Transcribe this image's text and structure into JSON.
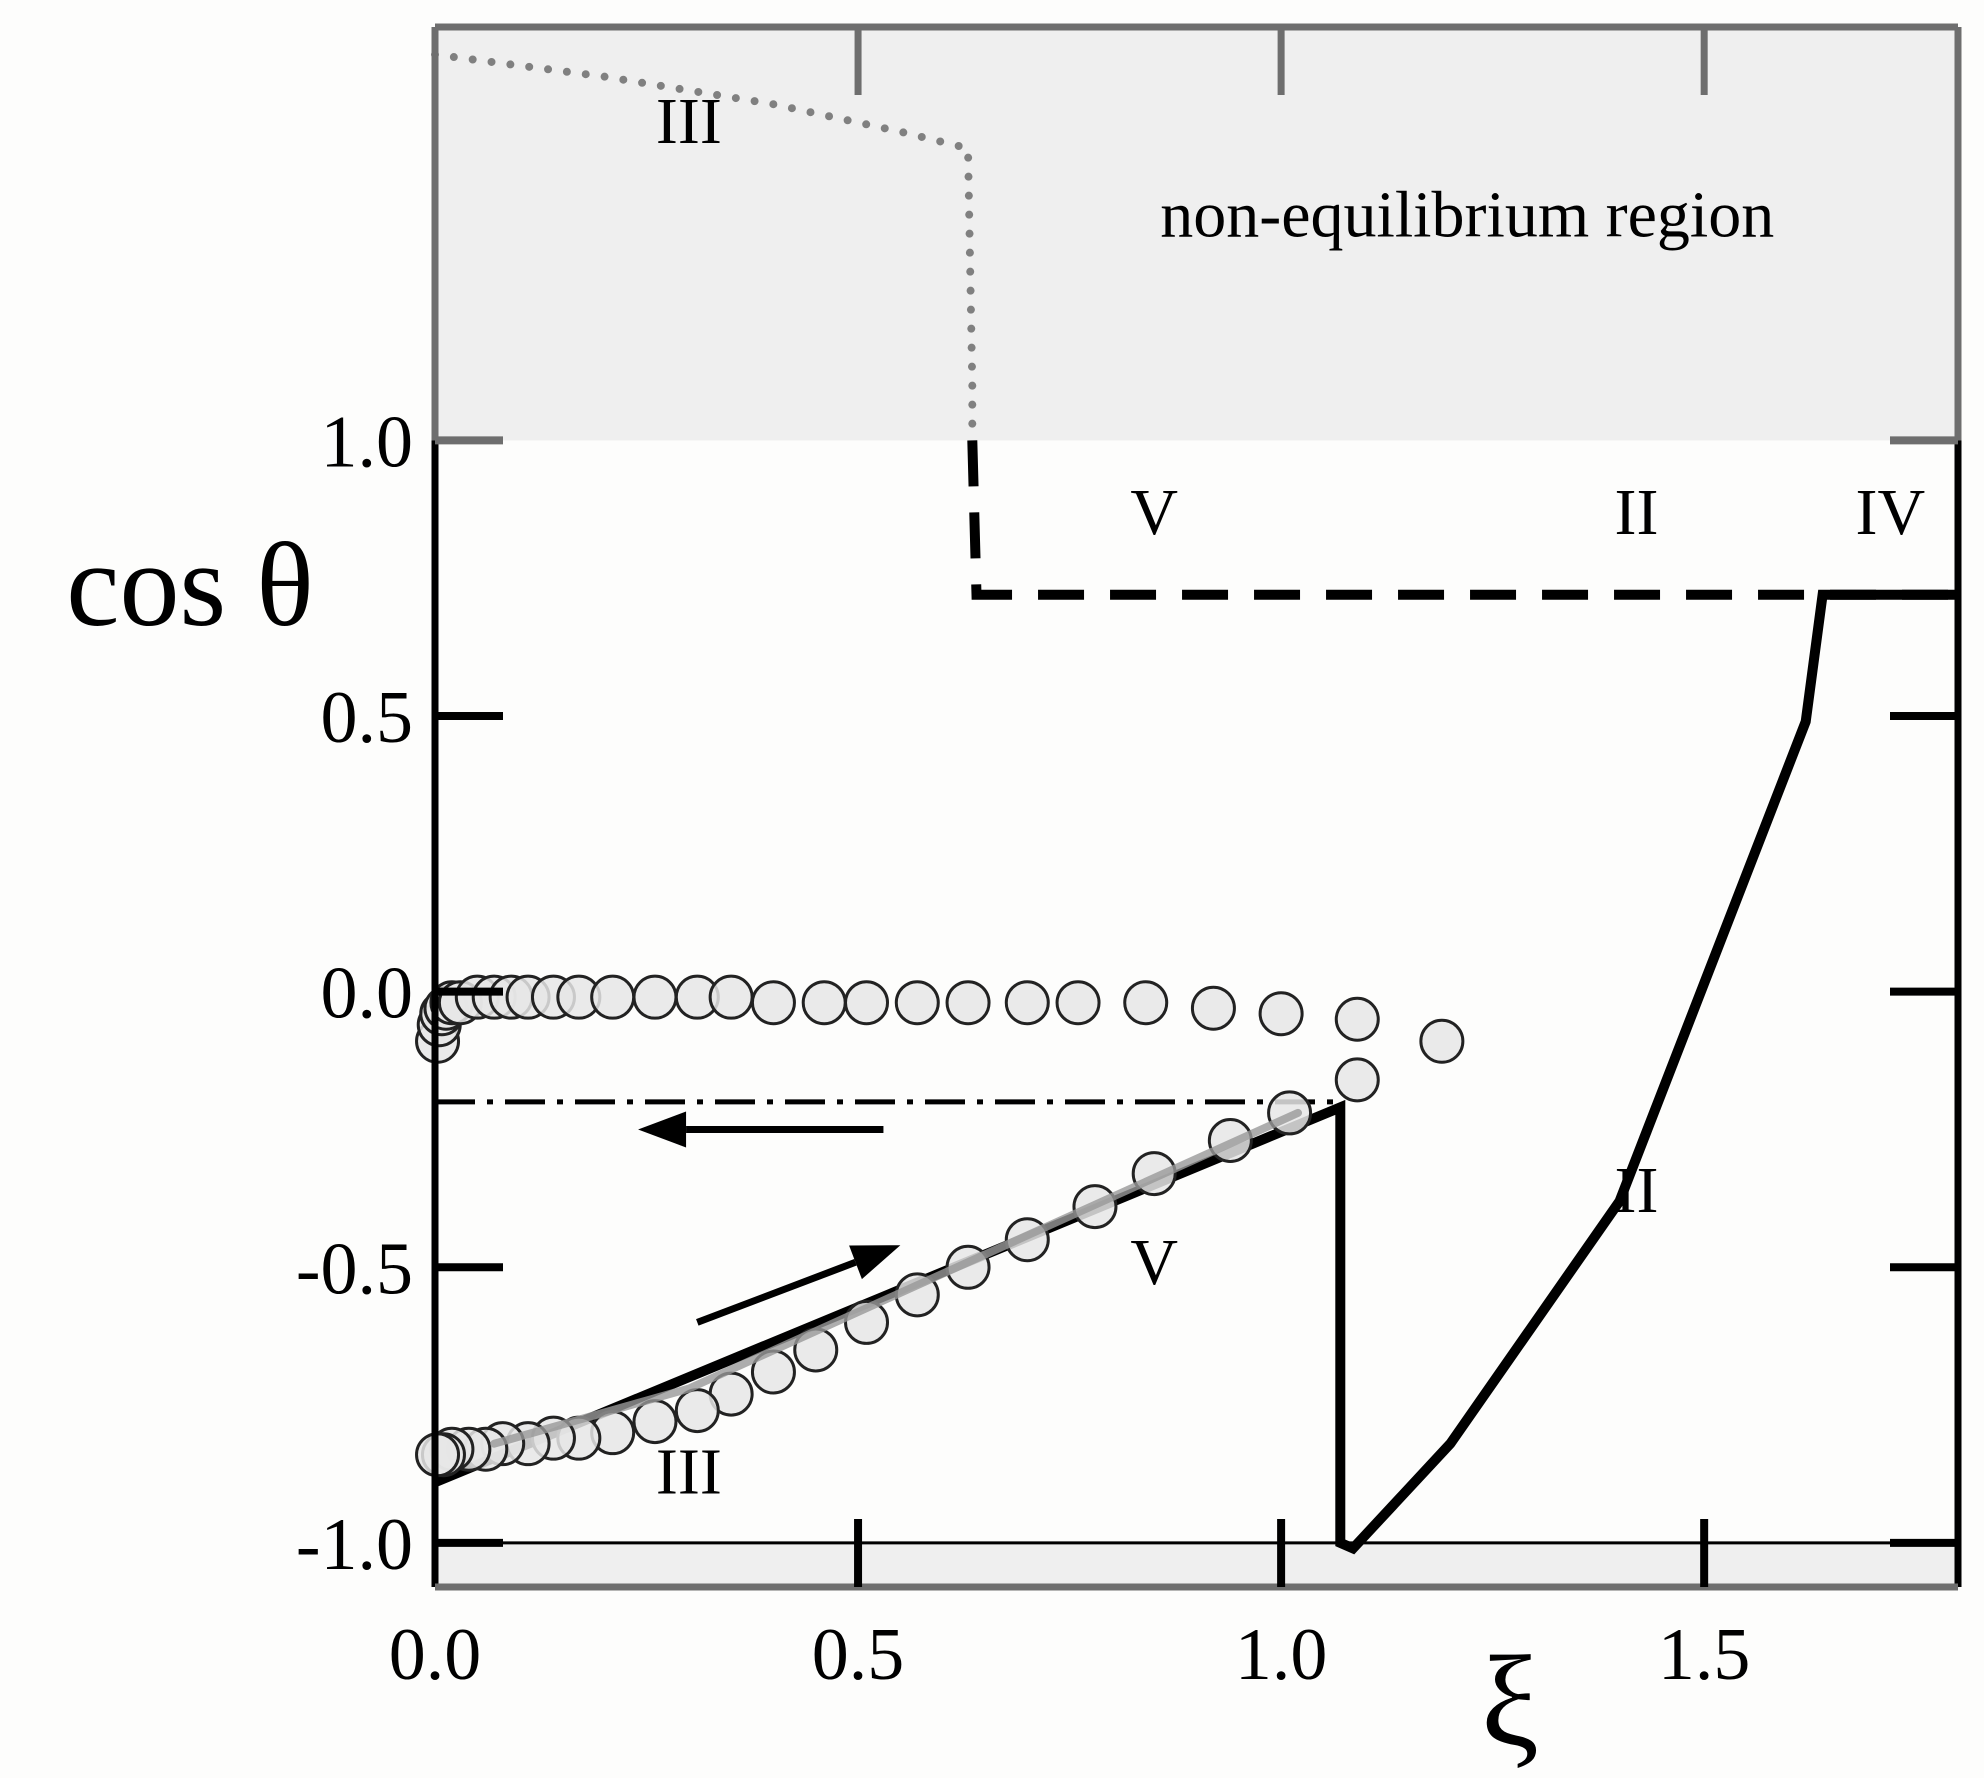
{
  "chart_data": {
    "type": "line",
    "title": "",
    "xlabel": "ξ",
    "ylabel": "cos θ",
    "xlim": [
      0,
      1.8
    ],
    "ylim": [
      -1.08,
      1.75
    ],
    "x_ticks": [
      0.0,
      0.5,
      1.0,
      1.5
    ],
    "x_tick_labels": [
      "0.0",
      "0.5",
      "1.0",
      "1.5"
    ],
    "y_ticks": [
      -1.0,
      -0.5,
      0.0,
      0.5,
      1.0
    ],
    "y_tick_labels": [
      "-1.0",
      "-0.5",
      "0.0",
      "0.5",
      "1.0"
    ],
    "grid": false,
    "legend": "none",
    "shaded_regions": [
      {
        "y_from": 1.0,
        "y_to": 1.75,
        "color": "#efefef",
        "label": "non-equilibrium region"
      },
      {
        "y_from": -1.08,
        "y_to": -1.0,
        "color": "#efefef",
        "label": ""
      }
    ],
    "series": [
      {
        "style": "solid",
        "color": "#000000",
        "points": [
          [
            0,
            -0.89
          ],
          [
            1.07,
            -0.21
          ],
          [
            1.07,
            -1.0
          ],
          [
            1.085,
            -1.01
          ],
          [
            1.2,
            -0.82
          ],
          [
            1.4,
            -0.38
          ],
          [
            1.62,
            0.49
          ],
          [
            1.64,
            0.72
          ],
          [
            1.8,
            0.72
          ]
        ]
      },
      {
        "style": "dashed",
        "color": "#000000",
        "points": [
          [
            0.635,
            1.0
          ],
          [
            0.64,
            0.72
          ],
          [
            1.8,
            0.72
          ]
        ]
      },
      {
        "style": "dotted",
        "color": "#808080",
        "points": [
          [
            0.0,
            1.7
          ],
          [
            0.2,
            1.66
          ],
          [
            0.4,
            1.61
          ],
          [
            0.55,
            1.56
          ],
          [
            0.63,
            1.53
          ],
          [
            0.635,
            1.1
          ],
          [
            0.635,
            1.0
          ]
        ]
      },
      {
        "style": "dash-dot",
        "color": "#000000",
        "points": [
          [
            0.0,
            -0.2
          ],
          [
            1.07,
            -0.2
          ]
        ]
      },
      {
        "style": "markers",
        "color": "#e6e6e6",
        "points": [
          [
            0.003,
            -0.09
          ],
          [
            0.005,
            -0.06
          ],
          [
            0.008,
            -0.04
          ],
          [
            0.013,
            -0.03
          ],
          [
            0.02,
            -0.02
          ],
          [
            0.03,
            -0.02
          ],
          [
            0.05,
            -0.01
          ],
          [
            0.07,
            -0.01
          ],
          [
            0.09,
            -0.01
          ],
          [
            0.11,
            -0.01
          ],
          [
            0.14,
            -0.01
          ],
          [
            0.17,
            -0.01
          ],
          [
            0.21,
            -0.01
          ],
          [
            0.26,
            -0.01
          ],
          [
            0.31,
            -0.01
          ],
          [
            0.35,
            -0.01
          ],
          [
            0.4,
            -0.02
          ],
          [
            0.46,
            -0.02
          ],
          [
            0.51,
            -0.02
          ],
          [
            0.57,
            -0.02
          ],
          [
            0.63,
            -0.02
          ],
          [
            0.7,
            -0.02
          ],
          [
            0.76,
            -0.02
          ],
          [
            0.84,
            -0.02
          ],
          [
            0.92,
            -0.03
          ],
          [
            1.0,
            -0.04
          ],
          [
            1.09,
            -0.05
          ],
          [
            1.19,
            -0.09
          ],
          [
            1.09,
            -0.16
          ],
          [
            1.01,
            -0.22
          ],
          [
            0.94,
            -0.27
          ],
          [
            0.85,
            -0.33
          ],
          [
            0.78,
            -0.39
          ],
          [
            0.7,
            -0.45
          ],
          [
            0.63,
            -0.5
          ],
          [
            0.57,
            -0.55
          ],
          [
            0.51,
            -0.6
          ],
          [
            0.45,
            -0.65
          ],
          [
            0.4,
            -0.69
          ],
          [
            0.35,
            -0.73
          ],
          [
            0.31,
            -0.76
          ],
          [
            0.26,
            -0.78
          ],
          [
            0.21,
            -0.8
          ],
          [
            0.17,
            -0.81
          ],
          [
            0.14,
            -0.81
          ],
          [
            0.11,
            -0.82
          ],
          [
            0.08,
            -0.82
          ],
          [
            0.06,
            -0.83
          ],
          [
            0.04,
            -0.83
          ],
          [
            0.02,
            -0.83
          ],
          [
            0.01,
            -0.84
          ],
          [
            0.003,
            -0.84
          ]
        ]
      },
      {
        "style": "solid-gray",
        "color": "#999999",
        "points": [
          [
            0.07,
            -0.82
          ],
          [
            0.3,
            -0.72
          ],
          [
            1.02,
            -0.22
          ]
        ]
      }
    ],
    "annotations": [
      {
        "text": "III",
        "x": 0.3,
        "y": 1.54
      },
      {
        "text": "non-equilibrium region",
        "x": 1.22,
        "y": 1.37
      },
      {
        "text": "V",
        "x": 0.85,
        "y": 0.83
      },
      {
        "text": "II",
        "x": 1.42,
        "y": 0.83
      },
      {
        "text": "IV",
        "x": 1.72,
        "y": 0.83
      },
      {
        "text": "V",
        "x": 0.85,
        "y": -0.53
      },
      {
        "text": "II",
        "x": 1.42,
        "y": -0.4
      },
      {
        "text": "III",
        "x": 0.3,
        "y": -0.91
      }
    ],
    "arrows": [
      {
        "from": [
          0.53,
          -0.25
        ],
        "to": [
          0.24,
          -0.25
        ]
      },
      {
        "from": [
          0.31,
          -0.6
        ],
        "to": [
          0.55,
          -0.46
        ]
      }
    ]
  }
}
